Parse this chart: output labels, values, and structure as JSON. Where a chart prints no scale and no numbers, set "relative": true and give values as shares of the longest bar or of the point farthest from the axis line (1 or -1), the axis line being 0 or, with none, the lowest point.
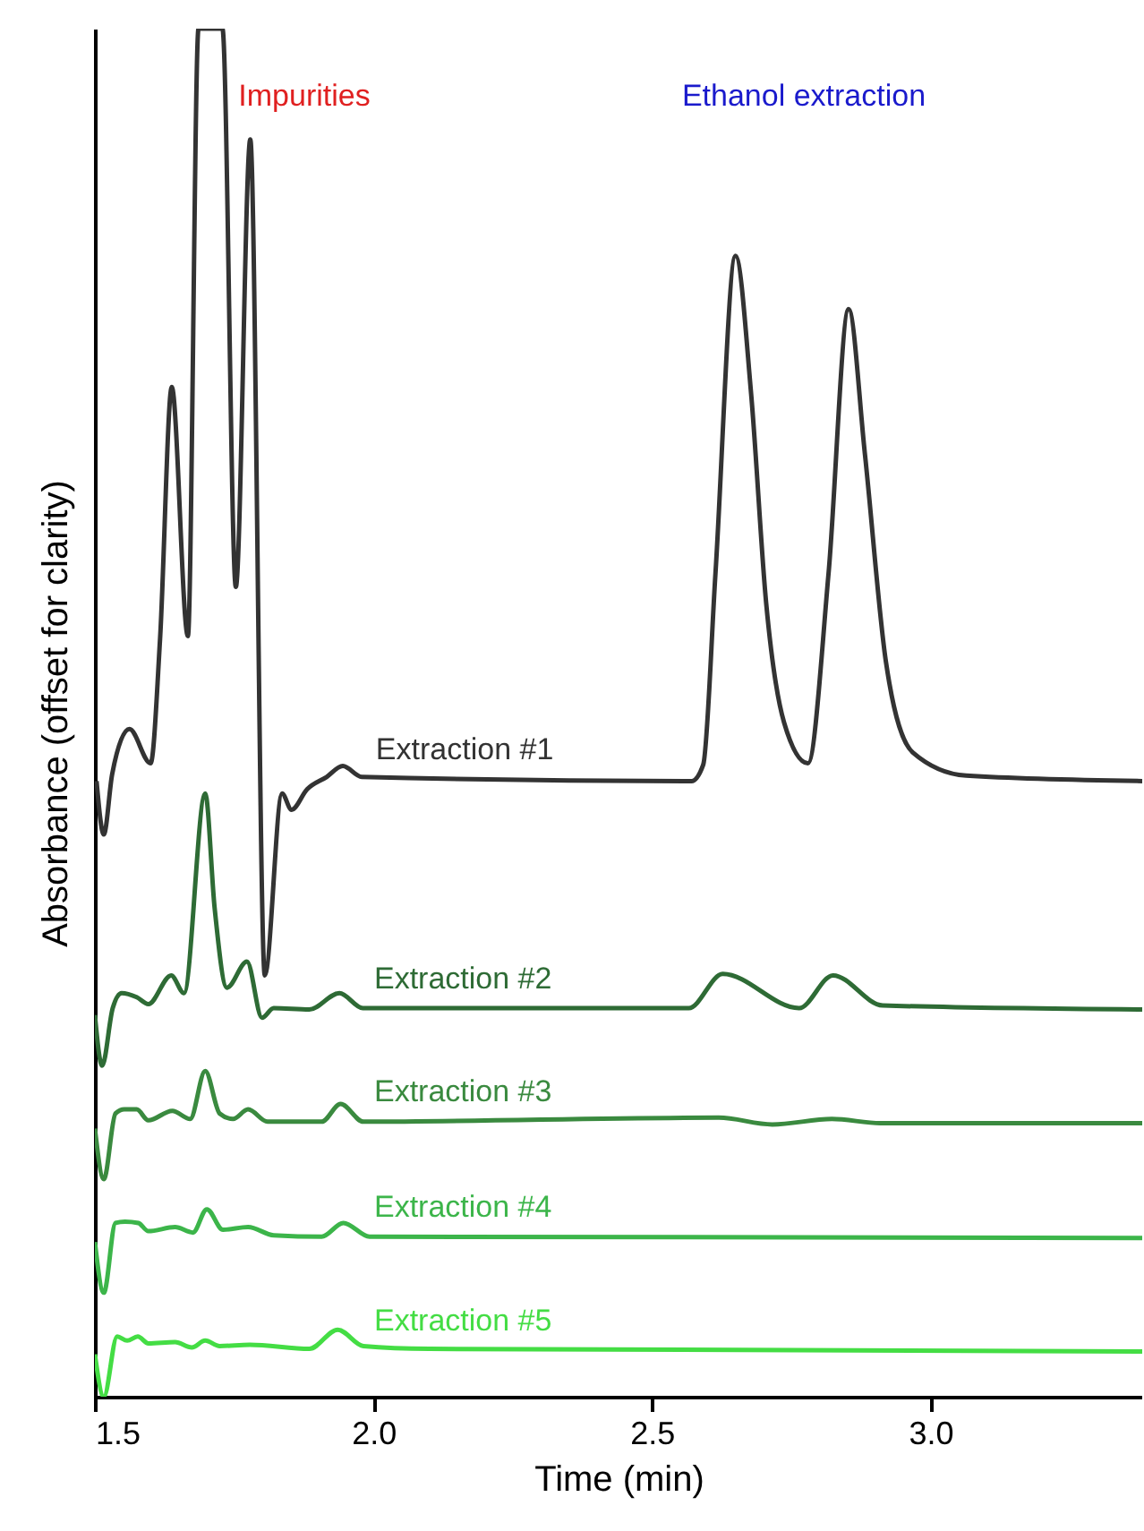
{
  "chart_data": {
    "type": "line",
    "relative": true,
    "xlabel": "Time (min)",
    "ylabel": "Absorbance (offset for clarity)",
    "xlim": [
      1.5,
      3.38
    ],
    "xticks": [
      1.5,
      {
        "value": 2,
        "label": "2.0"
      },
      2.5,
      {
        "value": 3,
        "label": "3.0"
      }
    ],
    "grid": false,
    "marker": "none",
    "line_style": "solid",
    "annotations": [
      "Impurities",
      "Ethanol extraction"
    ],
    "series": [
      {
        "name": "Extraction #1",
        "color": "#333333",
        "x": [
          1.503,
          1.516,
          1.531,
          1.562,
          1.6,
          1.617,
          1.638,
          1.667,
          1.686,
          1.729,
          1.753,
          1.779,
          1.805,
          1.836,
          1.853,
          1.881,
          1.916,
          1.945,
          1.979,
          2.571,
          2.592,
          2.614,
          2.65,
          2.678,
          2.705,
          2.737,
          2.78,
          2.817,
          2.853,
          2.882,
          2.92,
          2.968,
          3.064,
          3.38
        ],
        "values": [
          0.45,
          0.411,
          0.455,
          0.488,
          0.463,
          0.554,
          0.738,
          0.556,
          1.0,
          1.0,
          0.592,
          0.919,
          0.308,
          0.441,
          0.429,
          0.444,
          0.453,
          0.461,
          0.453,
          0.45,
          0.462,
          0.602,
          0.834,
          0.733,
          0.58,
          0.493,
          0.463,
          0.602,
          0.795,
          0.69,
          0.537,
          0.471,
          0.454,
          0.45
        ]
      },
      {
        "name": "Extraction #2",
        "color": "#2e6b35",
        "x": [
          1.5,
          1.513,
          1.532,
          1.548,
          1.575,
          1.596,
          1.637,
          1.66,
          1.698,
          1.715,
          1.737,
          1.773,
          1.8,
          1.821,
          1.885,
          1.939,
          1.981,
          2.566,
          2.627,
          2.764,
          2.825,
          2.914,
          3.38
        ],
        "values": [
          0.279,
          0.242,
          0.284,
          0.295,
          0.292,
          0.287,
          0.308,
          0.295,
          0.441,
          0.357,
          0.299,
          0.318,
          0.277,
          0.284,
          0.283,
          0.295,
          0.284,
          0.284,
          0.309,
          0.284,
          0.308,
          0.286,
          0.283
        ]
      },
      {
        "name": "Extraction #3",
        "color": "#3a8a3f",
        "x": [
          1.5,
          1.516,
          1.537,
          1.553,
          1.575,
          1.596,
          1.639,
          1.671,
          1.698,
          1.724,
          1.748,
          1.775,
          1.81,
          1.907,
          1.941,
          1.982,
          2.62,
          2.716,
          2.823,
          2.91,
          3.38
        ],
        "values": [
          0.196,
          0.159,
          0.207,
          0.21,
          0.21,
          0.202,
          0.209,
          0.203,
          0.238,
          0.207,
          0.203,
          0.21,
          0.201,
          0.201,
          0.214,
          0.201,
          0.204,
          0.199,
          0.203,
          0.2,
          0.2
        ]
      },
      {
        "name": "Extraction #4",
        "color": "#3cb54a",
        "x": [
          1.5,
          1.516,
          1.537,
          1.554,
          1.578,
          1.596,
          1.644,
          1.676,
          1.701,
          1.73,
          1.775,
          1.821,
          1.907,
          1.946,
          1.993,
          3.38
        ],
        "values": [
          0.113,
          0.076,
          0.127,
          0.128,
          0.127,
          0.121,
          0.124,
          0.12,
          0.137,
          0.122,
          0.124,
          0.118,
          0.117,
          0.127,
          0.117,
          0.116
        ]
      },
      {
        "name": "Extraction #5",
        "color": "#44dd44",
        "x": [
          1.5,
          1.516,
          1.54,
          1.558,
          1.577,
          1.596,
          1.644,
          1.674,
          1.698,
          1.724,
          1.778,
          1.885,
          1.936,
          1.982,
          2.1,
          3.38
        ],
        "values": [
          0.031,
          0.0,
          0.044,
          0.041,
          0.044,
          0.039,
          0.04,
          0.036,
          0.041,
          0.037,
          0.038,
          0.035,
          0.049,
          0.037,
          0.035,
          0.033
        ]
      }
    ]
  }
}
